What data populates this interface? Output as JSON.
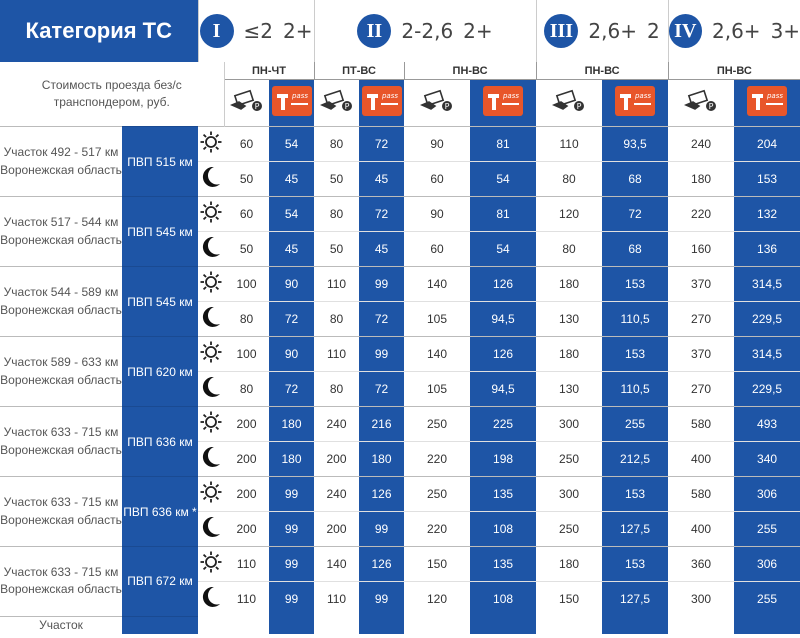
{
  "header": {
    "title": "Категория ТС",
    "note": "Стоимость проезда без/с транспондером, руб.",
    "categories": [
      {
        "roman": "I",
        "h": "≤2",
        "axles": "2+"
      },
      {
        "roman": "II",
        "h": "2-2,6",
        "axles": "2+"
      },
      {
        "roman": "III",
        "h": "2,6+",
        "axles": "2"
      },
      {
        "roman": "IV",
        "h": "2,6+",
        "axles": "3+"
      }
    ],
    "days": [
      "ПН-ЧТ",
      "ПТ-ВС",
      "ПН-ВС",
      "ПН-ВС",
      "ПН-ВС"
    ],
    "pass_label": "pass"
  },
  "rows": [
    {
      "seg": "Участок 492 - 517 км Воронежская область",
      "road": "ПВП 515 км",
      "day": [
        "60",
        "54",
        "80",
        "72",
        "90",
        "81",
        "110",
        "93,5",
        "240",
        "204"
      ],
      "night": [
        "50",
        "45",
        "50",
        "45",
        "60",
        "54",
        "80",
        "68",
        "180",
        "153"
      ]
    },
    {
      "seg": "Участок 517 - 544 км Воронежская область",
      "road": "ПВП 545 км",
      "day": [
        "60",
        "54",
        "80",
        "72",
        "90",
        "81",
        "120",
        "72",
        "220",
        "132"
      ],
      "night": [
        "50",
        "45",
        "50",
        "45",
        "60",
        "54",
        "80",
        "68",
        "160",
        "136"
      ]
    },
    {
      "seg": "Участок 544 - 589 км Воронежская область",
      "road": "ПВП 545 км",
      "day": [
        "100",
        "90",
        "110",
        "99",
        "140",
        "126",
        "180",
        "153",
        "370",
        "314,5"
      ],
      "night": [
        "80",
        "72",
        "80",
        "72",
        "105",
        "94,5",
        "130",
        "110,5",
        "270",
        "229,5"
      ]
    },
    {
      "seg": "Участок 589 - 633 км Воронежская область",
      "road": "ПВП 620 км",
      "day": [
        "100",
        "90",
        "110",
        "99",
        "140",
        "126",
        "180",
        "153",
        "370",
        "314,5"
      ],
      "night": [
        "80",
        "72",
        "80",
        "72",
        "105",
        "94,5",
        "130",
        "110,5",
        "270",
        "229,5"
      ]
    },
    {
      "seg": "Участок 633 - 715 км Воронежская область",
      "road": "ПВП 636 км",
      "day": [
        "200",
        "180",
        "240",
        "216",
        "250",
        "225",
        "300",
        "255",
        "580",
        "493"
      ],
      "night": [
        "200",
        "180",
        "200",
        "180",
        "220",
        "198",
        "250",
        "212,5",
        "400",
        "340"
      ]
    },
    {
      "seg": "Участок 633 - 715 км Воронежская область",
      "road": "ПВП 636 км *",
      "day": [
        "200",
        "99",
        "240",
        "126",
        "250",
        "135",
        "300",
        "153",
        "580",
        "306"
      ],
      "night": [
        "200",
        "99",
        "200",
        "99",
        "220",
        "108",
        "250",
        "127,5",
        "400",
        "255"
      ]
    },
    {
      "seg": "Участок 633 - 715 км Воронежская область",
      "road": "ПВП 672 км",
      "day": [
        "110",
        "99",
        "140",
        "126",
        "150",
        "135",
        "180",
        "153",
        "360",
        "306"
      ],
      "night": [
        "110",
        "99",
        "110",
        "99",
        "120",
        "108",
        "150",
        "127,5",
        "300",
        "255"
      ]
    }
  ],
  "partial_row": {
    "seg": "Участок"
  },
  "colors": {
    "blue": "#1e55a6",
    "orange": "#e8562a"
  },
  "icons": [
    "sun-icon",
    "moon-icon",
    "cash-icon",
    "t-pass-icon"
  ]
}
